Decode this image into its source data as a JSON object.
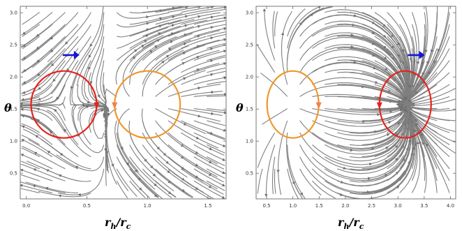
{
  "chart_data": [
    {
      "type": "streamplot",
      "xlabel": "r_h/r_c",
      "ylabel": "θ",
      "xlim": [
        -0.05,
        1.65
      ],
      "ylim": [
        0.1,
        3.1
      ],
      "xticks": [
        "0.0",
        "0.5",
        "1.0",
        "1.5"
      ],
      "xtick_values": [
        0.0,
        0.5,
        1.0,
        1.5
      ],
      "yticks": [
        "0.5",
        "1.0",
        "1.5",
        "2.0",
        "2.5",
        "3.0"
      ],
      "ytick_values": [
        0.5,
        1.0,
        1.5,
        2.0,
        2.5,
        3.0
      ],
      "critical_points": [
        {
          "x": 0.31,
          "y": 1.571,
          "kind": "saddle",
          "circle_color": "#e8201a",
          "winding_arrow_color": "#e8201a"
        },
        {
          "x": 1.0,
          "y": 1.571,
          "kind": "source",
          "circle_color": "#f0962a",
          "winding_arrow_color": "#f47f4b"
        }
      ],
      "direction_arrow": {
        "x": 0.37,
        "y": 2.34,
        "color": "#1515d8",
        "direction": "right"
      },
      "stream_color": "#7f7f7f"
    },
    {
      "type": "streamplot",
      "xlabel": "r_h/r_c",
      "ylabel": "θ",
      "xlim": [
        0.3,
        4.1
      ],
      "ylim": [
        0.1,
        3.1
      ],
      "xticks": [
        "0.5",
        "1.0",
        "1.5",
        "2.0",
        "2.5",
        "3.0",
        "3.5",
        "4.0"
      ],
      "xtick_values": [
        0.5,
        1.0,
        1.5,
        2.0,
        2.5,
        3.0,
        3.5,
        4.0
      ],
      "yticks": [
        "0.5",
        "1.0",
        "1.5",
        "2.0",
        "2.5",
        "3.0"
      ],
      "ytick_values": [
        0.5,
        1.0,
        1.5,
        2.0,
        2.5,
        3.0
      ],
      "critical_points": [
        {
          "x": 1.0,
          "y": 1.571,
          "kind": "source",
          "circle_color": "#f0962a",
          "winding_arrow_color": "#f47f4b"
        },
        {
          "x": 3.14,
          "y": 1.571,
          "kind": "sink",
          "circle_color": "#e8201a",
          "winding_arrow_color": "#e8201a"
        }
      ],
      "direction_arrow": {
        "x": 3.35,
        "y": 2.34,
        "color": "#1515d8",
        "direction": "right"
      },
      "stream_color": "#7f7f7f"
    }
  ]
}
